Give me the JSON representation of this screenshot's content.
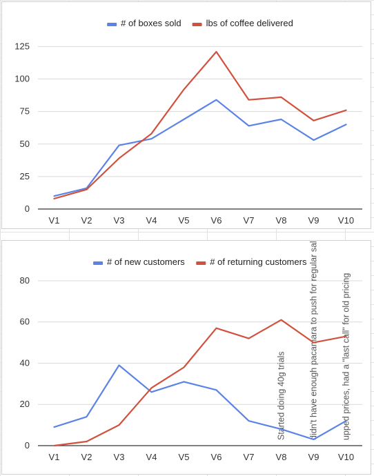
{
  "chart_data": [
    {
      "type": "line",
      "title": "",
      "xlabel": "",
      "ylabel": "",
      "categories": [
        "V1",
        "V2",
        "V3",
        "V4",
        "V5",
        "V6",
        "V7",
        "V8",
        "V9",
        "V10"
      ],
      "yticks": [
        0,
        25,
        50,
        75,
        100,
        125
      ],
      "ylim": [
        0,
        130
      ],
      "grid": true,
      "legend_position": "top",
      "series": [
        {
          "name": "# of boxes sold",
          "color": "#5b83e6",
          "values": [
            10,
            16,
            49,
            54,
            69,
            84,
            64,
            69,
            53,
            65
          ]
        },
        {
          "name": "lbs of coffee delivered",
          "color": "#d0513e",
          "values": [
            8,
            15,
            39,
            58,
            92,
            121,
            84,
            86,
            68,
            76
          ]
        }
      ]
    },
    {
      "type": "line",
      "title": "",
      "xlabel": "",
      "ylabel": "",
      "categories": [
        "V1",
        "V2",
        "V3",
        "V4",
        "V5",
        "V6",
        "V7",
        "V8",
        "V9",
        "V10"
      ],
      "yticks": [
        0,
        20,
        40,
        60,
        80
      ],
      "ylim": [
        0,
        84
      ],
      "grid": true,
      "legend_position": "top",
      "series": [
        {
          "name": "# of new customers",
          "color": "#5b83e6",
          "values": [
            9,
            14,
            39,
            26,
            31,
            27,
            12,
            8,
            3,
            12
          ]
        },
        {
          "name": "# of returning customers",
          "color": "#d0513e",
          "values": [
            0,
            2,
            10,
            28,
            38,
            57,
            52,
            61,
            50,
            53
          ]
        }
      ],
      "annotations": [
        {
          "category": "V8",
          "text": "Started doing 40g trials"
        },
        {
          "category": "V9",
          "text": "didn't have enough pacamara to push for regular sales"
        },
        {
          "category": "V10",
          "text": "upped prices, had a \"last call\" for old pricing"
        }
      ]
    }
  ]
}
